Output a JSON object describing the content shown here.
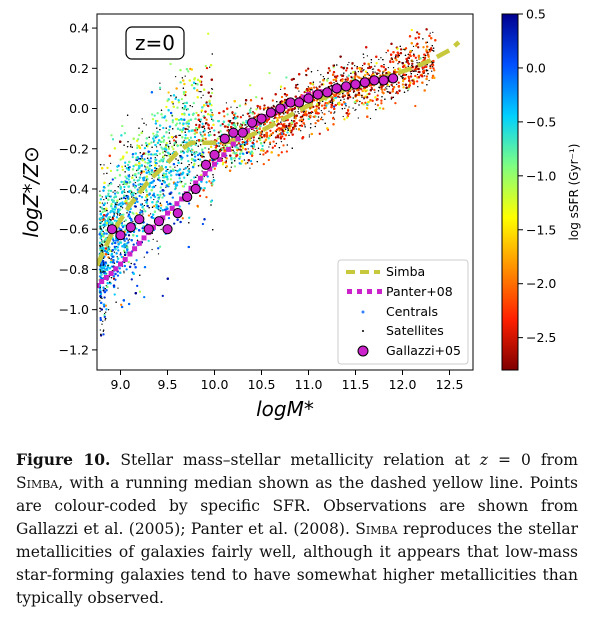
{
  "chart_data": {
    "type": "scatter",
    "annotation": "z=0",
    "xlabel": "logM*",
    "ylabel": "logZ*/Z⊙",
    "xlim": [
      8.75,
      12.75
    ],
    "ylim": [
      -1.3,
      0.47
    ],
    "xticks": [
      "9.0",
      "9.5",
      "10.0",
      "10.5",
      "11.0",
      "11.5",
      "12.0",
      "12.5"
    ],
    "yticks": [
      "0.4",
      "0.2",
      "0.0",
      "−0.2",
      "−0.4",
      "−0.6",
      "−0.8",
      "−1.0",
      "−1.2"
    ],
    "grid": false,
    "legend_position": "lower-right",
    "colorbar": {
      "label": "log sSFR (Gyr⁻¹)",
      "range": [
        -2.8,
        0.5
      ],
      "ticks": [
        "0.5",
        "0.0",
        "−0.5",
        "−1.0",
        "−1.5",
        "−2.0",
        "−2.5"
      ],
      "colors": [
        "#7f0000",
        "#ff2000",
        "#ff9000",
        "#ffff00",
        "#80ff80",
        "#00d0ff",
        "#0050ff",
        "#00008f"
      ]
    },
    "series": [
      {
        "name": "Simba",
        "style": "dashed-line",
        "color": "#c8c83c",
        "x": [
          8.75,
          8.9,
          9.1,
          9.3,
          9.5,
          9.6,
          9.75,
          9.9,
          10.1,
          10.3,
          10.5,
          10.7,
          10.9,
          11.1,
          11.3,
          11.5,
          11.7,
          11.9,
          12.1,
          12.3,
          12.5,
          12.6
        ],
        "y": [
          -0.78,
          -0.63,
          -0.48,
          -0.36,
          -0.27,
          -0.22,
          -0.17,
          -0.17,
          -0.17,
          -0.15,
          -0.11,
          -0.06,
          -0.01,
          0.04,
          0.08,
          0.11,
          0.14,
          0.17,
          0.2,
          0.24,
          0.29,
          0.33
        ]
      },
      {
        "name": "Panter+08",
        "style": "dotted-squares",
        "color": "#cc22cc",
        "x": [
          8.75,
          8.9,
          9.05,
          9.2,
          9.35,
          9.5,
          9.65,
          9.8,
          9.95,
          10.1,
          10.25,
          10.4,
          10.55,
          10.7,
          10.85,
          11.0,
          11.2,
          11.4,
          11.6,
          11.8,
          11.95
        ],
        "y": [
          -0.88,
          -0.82,
          -0.75,
          -0.67,
          -0.59,
          -0.52,
          -0.45,
          -0.37,
          -0.3,
          -0.23,
          -0.15,
          -0.09,
          -0.04,
          0.0,
          0.03,
          0.07,
          0.09,
          0.11,
          0.13,
          0.15,
          0.15
        ]
      },
      {
        "name": "Centrals",
        "style": "small-colored-points"
      },
      {
        "name": "Satellites",
        "style": "tiny-black-points"
      },
      {
        "name": "Gallazzi+05",
        "style": "circles",
        "color": "#cc22cc",
        "x": [
          8.91,
          9.0,
          9.11,
          9.2,
          9.3,
          9.41,
          9.5,
          9.61,
          9.71,
          9.8,
          9.91,
          10.0,
          10.11,
          10.2,
          10.3,
          10.4,
          10.5,
          10.6,
          10.7,
          10.81,
          10.9,
          11.0,
          11.1,
          11.2,
          11.3,
          11.4,
          11.5,
          11.6,
          11.7,
          11.8,
          11.9
        ],
        "y": [
          -0.6,
          -0.63,
          -0.59,
          -0.55,
          -0.6,
          -0.56,
          -0.6,
          -0.52,
          -0.44,
          -0.4,
          -0.28,
          -0.23,
          -0.15,
          -0.12,
          -0.12,
          -0.07,
          -0.05,
          -0.02,
          0.0,
          0.03,
          0.03,
          0.05,
          0.07,
          0.08,
          0.1,
          0.11,
          0.12,
          0.13,
          0.14,
          0.14,
          0.15
        ]
      }
    ]
  },
  "caption": {
    "figure_label": "Figure 10.",
    "part1": " Stellar mass–stellar metallicity relation at ",
    "z_symbol": "z",
    "part2": " = 0 from ",
    "simba1": "Simba",
    "part3": ", with a running median shown as the dashed yellow line. Points are colour-coded by specific SFR. Observations are shown from Gallazzi et al. (2005); Panter et al. (2008). ",
    "simba2": "Simba",
    "part4": " reproduces the stellar metallicities of galaxies fairly well, although it appears that low-mass star-forming galaxies tend to have somewhat higher metallicities than typically observed."
  }
}
